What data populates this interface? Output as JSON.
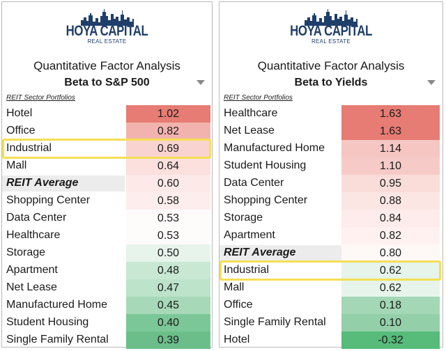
{
  "logo": {
    "title": "HOYA CAPITAL",
    "subtitle": "REAL ESTATE"
  },
  "left": {
    "title": "Quantitative Factor Analysis",
    "subtitle": "Beta to S&P 500",
    "caption": "REIT Sector Portfolios",
    "rows": [
      {
        "label": "Hotel",
        "value": "1.02",
        "color": "#e67c73"
      },
      {
        "label": "Office",
        "value": "0.82",
        "color": "#f2b3ae"
      },
      {
        "label": "Industrial",
        "value": "0.69",
        "color": "#f8d3d0",
        "highlight": true
      },
      {
        "label": "Mall",
        "value": "0.64",
        "color": "#fbe0de"
      },
      {
        "label": "REIT Average",
        "value": "0.60",
        "color": "#fde9e7",
        "avg": true
      },
      {
        "label": "Shopping Center",
        "value": "0.58",
        "color": "#fdeeed"
      },
      {
        "label": "Data Center",
        "value": "0.53",
        "color": "#fefbfb"
      },
      {
        "label": "Healthcare",
        "value": "0.53",
        "color": "#fefbfb"
      },
      {
        "label": "Storage",
        "value": "0.50",
        "color": "#e6f4eb"
      },
      {
        "label": "Apartment",
        "value": "0.48",
        "color": "#c8e8d3"
      },
      {
        "label": "Net Lease",
        "value": "0.47",
        "color": "#bde3ca"
      },
      {
        "label": "Manufactured Home",
        "value": "0.45",
        "color": "#a7d9b8"
      },
      {
        "label": "Student Housing",
        "value": "0.40",
        "color": "#7cc797"
      },
      {
        "label": "Single Family Rental",
        "value": "0.39",
        "color": "#6bbe89"
      }
    ]
  },
  "right": {
    "title": "Quantitative Factor Analysis",
    "subtitle": "Beta to Yields",
    "caption": "REIT Sector Portfolios",
    "rows": [
      {
        "label": "Healthcare",
        "value": "1.63",
        "color": "#e67c73"
      },
      {
        "label": "Net Lease",
        "value": "1.63",
        "color": "#e67c73"
      },
      {
        "label": "Manufactured Home",
        "value": "1.14",
        "color": "#f5c6c2"
      },
      {
        "label": "Student Housing",
        "value": "1.10",
        "color": "#f6cbc7"
      },
      {
        "label": "Data Center",
        "value": "0.95",
        "color": "#fadcd9"
      },
      {
        "label": "Shopping Center",
        "value": "0.88",
        "color": "#fce6e4"
      },
      {
        "label": "Storage",
        "value": "0.84",
        "color": "#fdeceb"
      },
      {
        "label": "Apartment",
        "value": "0.82",
        "color": "#fef1f0"
      },
      {
        "label": "REIT Average",
        "value": "0.80",
        "color": "#fef8f7",
        "avg": true
      },
      {
        "label": "Industrial",
        "value": "0.62",
        "color": "#e6f4eb",
        "highlight": true
      },
      {
        "label": "Mall",
        "value": "0.62",
        "color": "#e6f4eb"
      },
      {
        "label": "Office",
        "value": "0.18",
        "color": "#a3d7b5"
      },
      {
        "label": "Single Family Rental",
        "value": "0.10",
        "color": "#93d0a9"
      },
      {
        "label": "Hotel",
        "value": "-0.32",
        "color": "#57bb7a"
      }
    ]
  },
  "colors": {
    "highlight": "#f4df53",
    "logo": "#1f3e6a"
  }
}
